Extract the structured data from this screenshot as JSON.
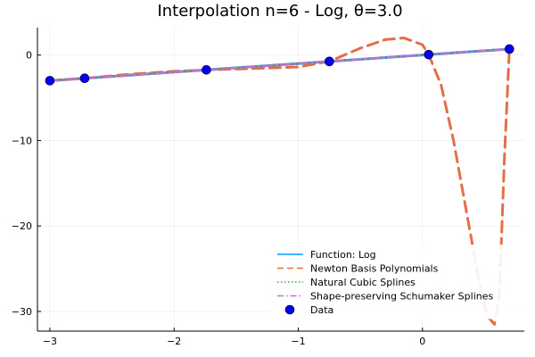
{
  "chart_data": {
    "type": "line",
    "title": "Interpolation n=6 - Log, θ=3.0",
    "xlabel": "",
    "ylabel": "",
    "xlim": [
      -3.1,
      0.82
    ],
    "ylim": [
      -32.3,
      3.2
    ],
    "x_ticks": [
      -3,
      -2,
      -1,
      0
    ],
    "x_tick_labels": [
      "−3",
      "−2",
      "−1",
      "0"
    ],
    "y_ticks": [
      0,
      -10,
      -20,
      -30
    ],
    "y_tick_labels": [
      "0",
      "−10",
      "−20",
      "−30"
    ],
    "grid": true,
    "legend_position": "bottom-right",
    "legend": [
      {
        "label": "Function: Log",
        "color": "#009AFA",
        "style": "solid"
      },
      {
        "label": "Newton Basis Polynomials",
        "color": "#E26F46",
        "style": "dashed"
      },
      {
        "label": "Natural Cubic Splines",
        "color": "#3DA44D",
        "style": "dotted"
      },
      {
        "label": "Shape-preserving Schumaker Splines",
        "color": "#C271D2",
        "style": "dashdot"
      },
      {
        "label": "Data",
        "color": "#0000FF",
        "style": "marker"
      }
    ],
    "series": [
      {
        "name": "Function: Log",
        "color": "#009AFA",
        "x": [
          -3.0,
          -2.5,
          -2.0,
          -1.5,
          -1.0,
          -0.5,
          0.0,
          0.5,
          0.7
        ],
        "y": [
          -3.0,
          -2.5,
          -2.0,
          -1.5,
          -1.0,
          -0.5,
          0.0,
          0.5,
          0.7
        ]
      },
      {
        "name": "Newton Basis Polynomials",
        "color": "#E26F46",
        "x": [
          -3.0,
          -2.72,
          -2.4,
          -2.0,
          -1.74,
          -1.4,
          -1.0,
          -0.75,
          -0.5,
          -0.3,
          -0.15,
          0.0,
          0.05,
          0.15,
          0.25,
          0.35,
          0.45,
          0.52,
          0.58,
          0.62,
          0.66,
          0.7
        ],
        "y": [
          -3.0,
          -2.72,
          -2.3,
          -1.9,
          -1.74,
          -1.6,
          -1.4,
          -0.75,
          0.8,
          1.8,
          2.0,
          1.2,
          0.05,
          -3.5,
          -10.0,
          -18.0,
          -26.0,
          -30.5,
          -31.5,
          -28.0,
          -12.0,
          0.7
        ]
      },
      {
        "name": "Natural Cubic Splines",
        "color": "#3DA44D",
        "x": [
          -3.0,
          -2.72,
          -1.74,
          -0.75,
          0.05,
          0.7
        ],
        "y": [
          -3.0,
          -2.72,
          -1.74,
          -0.75,
          0.05,
          0.7
        ]
      },
      {
        "name": "Shape-preserving Schumaker Splines",
        "color": "#C271D2",
        "x": [
          -3.0,
          -2.72,
          -1.74,
          -0.75,
          0.05,
          0.7
        ],
        "y": [
          -3.0,
          -2.72,
          -1.74,
          -0.75,
          0.05,
          0.7
        ]
      }
    ],
    "data_points": {
      "name": "Data",
      "color": "#0000FF",
      "x": [
        -3.0,
        -2.72,
        -1.74,
        -0.75,
        0.05,
        0.7
      ],
      "y": [
        -3.0,
        -2.72,
        -1.74,
        -0.75,
        0.05,
        0.7
      ]
    }
  }
}
